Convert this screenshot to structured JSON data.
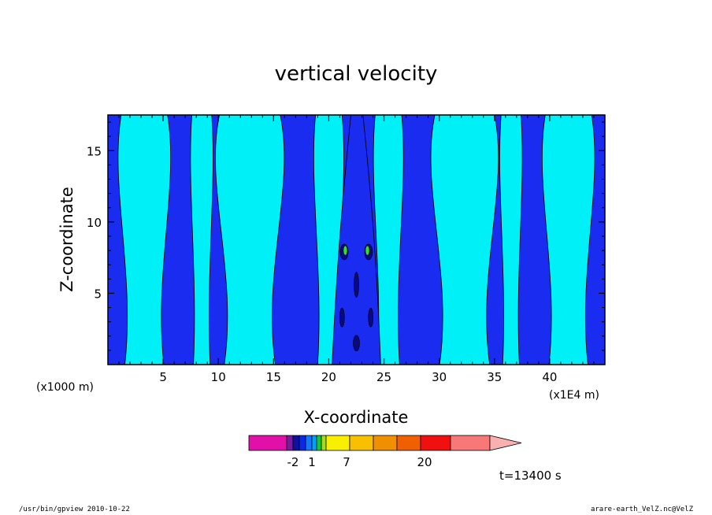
{
  "chart_data": {
    "type": "heatmap",
    "title": "vertical velocity",
    "xlabel": "X-coordinate",
    "ylabel": "Z-coordinate",
    "x_unit_label": "(x1E4 m)",
    "y_unit_label": "(x1000 m)",
    "xlim": [
      0,
      45
    ],
    "ylim": [
      0,
      17.5
    ],
    "x_ticks": [
      5,
      10,
      15,
      20,
      25,
      30,
      35,
      40
    ],
    "y_ticks": [
      5,
      10,
      15
    ],
    "x_tick_labels": [
      "5",
      "10",
      "15",
      "20",
      "25",
      "30",
      "35",
      "40"
    ],
    "y_tick_labels": [
      "5",
      "10",
      "15"
    ],
    "colorbar": {
      "tick_labels": [
        "-2",
        "1",
        "7",
        "20"
      ],
      "colors": [
        "#e010a8",
        "#7a1aa0",
        "#1010a0",
        "#0a28e8",
        "#1478ff",
        "#00a0ff",
        "#10c840",
        "#a0e010",
        "#f8f000",
        "#f8c000",
        "#f09000",
        "#f06000",
        "#f01010",
        "#f87878",
        "#f8b0b0"
      ]
    },
    "fill_colors": {
      "positive_weak": "#1a2cf0",
      "negative_weak": "#00f0f8",
      "strong_negative": "#0a0a80",
      "strong_positive": "#30e030"
    },
    "time_label": "t=13400 s"
  },
  "footer": {
    "left": "/usr/bin/gpview  2010-10-22",
    "right": "arare-earth_VelZ.nc@VelZ"
  }
}
